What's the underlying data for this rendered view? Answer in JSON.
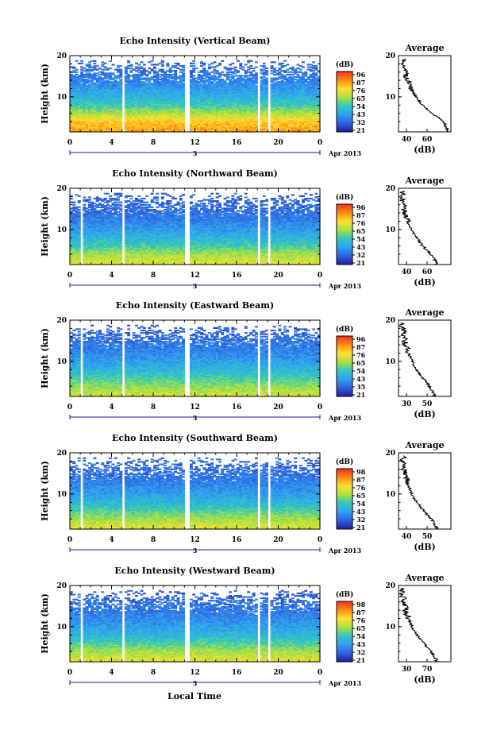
{
  "x_axis": {
    "ticks": [
      "0",
      "4",
      "8",
      "12",
      "16",
      "20",
      "0"
    ],
    "day_label": "3",
    "month_label": "Apr 2013",
    "xlabel": "Local Time"
  },
  "colorbar": {
    "unit": "(dB)",
    "labels": [
      "96",
      "87",
      "76",
      "65",
      "54",
      "43",
      "32",
      "21"
    ],
    "colors": [
      "#ff3020",
      "#ff8c10",
      "#ffe030",
      "#a8e040",
      "#30c8c0",
      "#30a0f0",
      "#3060e0",
      "#2020a0"
    ]
  },
  "panels": [
    {
      "title": "Echo Intensity (Vertical Beam)",
      "ylabel": "Height (km)",
      "yticks": [
        "20",
        "10"
      ],
      "colorbar_labels": [
        "96",
        "87",
        "76",
        "65",
        "54",
        "43",
        "32",
        "21"
      ],
      "avg_title": "Average",
      "avg_xticks": [
        "40",
        "60"
      ],
      "avg_xlabel": "(dB)"
    },
    {
      "title": "Echo Intensity (Northward Beam)",
      "ylabel": "Height (km)",
      "yticks": [
        "20",
        "10"
      ],
      "colorbar_labels": [
        "96",
        "87",
        "76",
        "65",
        "54",
        "43",
        "32",
        "21"
      ],
      "avg_title": "Average",
      "avg_xticks": [
        "40",
        "60"
      ],
      "avg_xlabel": "(dB)"
    },
    {
      "title": "Echo Intensity (Eastward Beam)",
      "ylabel": "Height (km)",
      "yticks": [
        "20",
        "10"
      ],
      "colorbar_labels": [
        "96",
        "87",
        "76",
        "65",
        "54",
        "43",
        "35",
        "21"
      ],
      "avg_title": "Average",
      "avg_xticks": [
        "30",
        "50"
      ],
      "avg_xlabel": "(dB)"
    },
    {
      "title": "Echo Intensity (Southward Beam)",
      "ylabel": "Height (km)",
      "yticks": [
        "20",
        "10"
      ],
      "colorbar_labels": [
        "98",
        "87",
        "76",
        "65",
        "54",
        "43",
        "32",
        "21"
      ],
      "avg_title": "Average",
      "avg_xticks": [
        "40",
        "50"
      ],
      "avg_xlabel": "(dB)"
    },
    {
      "title": "Echo Intensity (Westward Beam)",
      "ylabel": "Height (km)",
      "yticks": [
        "20",
        "10"
      ],
      "colorbar_labels": [
        "98",
        "87",
        "76",
        "65",
        "54",
        "43",
        "32",
        "21"
      ],
      "avg_title": "Average",
      "avg_xticks": [
        "30",
        "70"
      ],
      "avg_xlabel": "(dB)"
    }
  ],
  "chart_data": [
    {
      "type": "heatmap",
      "title": "Echo Intensity (Vertical Beam)",
      "xlabel": "Local Time",
      "ylabel": "Height (km)",
      "xlim": [
        0,
        24
      ],
      "ylim": [
        1.5,
        20
      ],
      "colorbar_unit": "(dB)",
      "profile_by_height": [
        {
          "height_km": 2,
          "intensity_db": 82
        },
        {
          "height_km": 4,
          "intensity_db": 78
        },
        {
          "height_km": 6,
          "intensity_db": 65
        },
        {
          "height_km": 8,
          "intensity_db": 54
        },
        {
          "height_km": 10,
          "intensity_db": 47
        },
        {
          "height_km": 12,
          "intensity_db": 42
        },
        {
          "height_km": 14,
          "intensity_db": 38
        },
        {
          "height_km": 16,
          "intensity_db": 35
        },
        {
          "height_km": 18,
          "intensity_db": 33
        }
      ],
      "data_gaps_hours": [
        [
          5.0,
          5.3
        ],
        [
          5.5,
          5.6
        ],
        [
          10.9,
          11.5
        ],
        [
          18.1,
          18.3
        ],
        [
          19.0,
          19.2
        ]
      ]
    },
    {
      "type": "heatmap",
      "title": "Echo Intensity (Northward Beam)",
      "xlabel": "Local Time",
      "ylabel": "Height (km)",
      "xlim": [
        0,
        24
      ],
      "ylim": [
        1.5,
        20
      ],
      "colorbar_unit": "(dB)",
      "profile_by_height": [
        {
          "height_km": 2,
          "intensity_db": 70
        },
        {
          "height_km": 4,
          "intensity_db": 64
        },
        {
          "height_km": 6,
          "intensity_db": 55
        },
        {
          "height_km": 8,
          "intensity_db": 48
        },
        {
          "height_km": 10,
          "intensity_db": 42
        },
        {
          "height_km": 12,
          "intensity_db": 38
        },
        {
          "height_km": 14,
          "intensity_db": 35
        },
        {
          "height_km": 16,
          "intensity_db": 33
        },
        {
          "height_km": 18,
          "intensity_db": 32
        }
      ],
      "data_gaps_hours": [
        [
          1.0,
          1.2
        ],
        [
          5.0,
          5.3
        ],
        [
          10.9,
          11.5
        ],
        [
          18.1,
          18.3
        ],
        [
          19.0,
          19.2
        ]
      ]
    },
    {
      "type": "heatmap",
      "title": "Echo Intensity (Eastward Beam)",
      "xlabel": "Local Time",
      "ylabel": "Height (km)",
      "xlim": [
        0,
        24
      ],
      "ylim": [
        1.5,
        20
      ],
      "colorbar_unit": "(dB)",
      "profile_by_height": [
        {
          "height_km": 2,
          "intensity_db": 68
        },
        {
          "height_km": 4,
          "intensity_db": 62
        },
        {
          "height_km": 6,
          "intensity_db": 55
        },
        {
          "height_km": 8,
          "intensity_db": 48
        },
        {
          "height_km": 10,
          "intensity_db": 43
        },
        {
          "height_km": 12,
          "intensity_db": 39
        },
        {
          "height_km": 14,
          "intensity_db": 36
        },
        {
          "height_km": 16,
          "intensity_db": 34
        },
        {
          "height_km": 18,
          "intensity_db": 32
        }
      ],
      "data_gaps_hours": [
        [
          1.0,
          1.2
        ],
        [
          5.0,
          5.3
        ],
        [
          10.9,
          11.5
        ],
        [
          18.1,
          18.3
        ],
        [
          19.0,
          19.2
        ]
      ]
    },
    {
      "type": "heatmap",
      "title": "Echo Intensity (Southward Beam)",
      "xlabel": "Local Time",
      "ylabel": "Height (km)",
      "xlim": [
        0,
        24
      ],
      "ylim": [
        1.5,
        20
      ],
      "colorbar_unit": "(dB)",
      "profile_by_height": [
        {
          "height_km": 2,
          "intensity_db": 70
        },
        {
          "height_km": 4,
          "intensity_db": 64
        },
        {
          "height_km": 6,
          "intensity_db": 56
        },
        {
          "height_km": 8,
          "intensity_db": 48
        },
        {
          "height_km": 10,
          "intensity_db": 43
        },
        {
          "height_km": 12,
          "intensity_db": 39
        },
        {
          "height_km": 14,
          "intensity_db": 36
        },
        {
          "height_km": 16,
          "intensity_db": 34
        },
        {
          "height_km": 18,
          "intensity_db": 33
        }
      ],
      "data_gaps_hours": [
        [
          1.0,
          1.2
        ],
        [
          5.0,
          5.3
        ],
        [
          10.9,
          11.5
        ],
        [
          18.1,
          18.3
        ],
        [
          19.0,
          19.2
        ]
      ]
    },
    {
      "type": "heatmap",
      "title": "Echo Intensity (Westward Beam)",
      "xlabel": "Local Time",
      "ylabel": "Height (km)",
      "xlim": [
        0,
        24
      ],
      "ylim": [
        1.5,
        20
      ],
      "colorbar_unit": "(dB)",
      "profile_by_height": [
        {
          "height_km": 2,
          "intensity_db": 70
        },
        {
          "height_km": 4,
          "intensity_db": 64
        },
        {
          "height_km": 6,
          "intensity_db": 56
        },
        {
          "height_km": 8,
          "intensity_db": 48
        },
        {
          "height_km": 10,
          "intensity_db": 43
        },
        {
          "height_km": 12,
          "intensity_db": 39
        },
        {
          "height_km": 14,
          "intensity_db": 36
        },
        {
          "height_km": 16,
          "intensity_db": 34
        },
        {
          "height_km": 18,
          "intensity_db": 32
        }
      ],
      "data_gaps_hours": [
        [
          1.0,
          1.2
        ],
        [
          5.0,
          5.3
        ],
        [
          10.9,
          11.5
        ],
        [
          18.1,
          18.3
        ],
        [
          19.0,
          19.2
        ]
      ]
    }
  ]
}
